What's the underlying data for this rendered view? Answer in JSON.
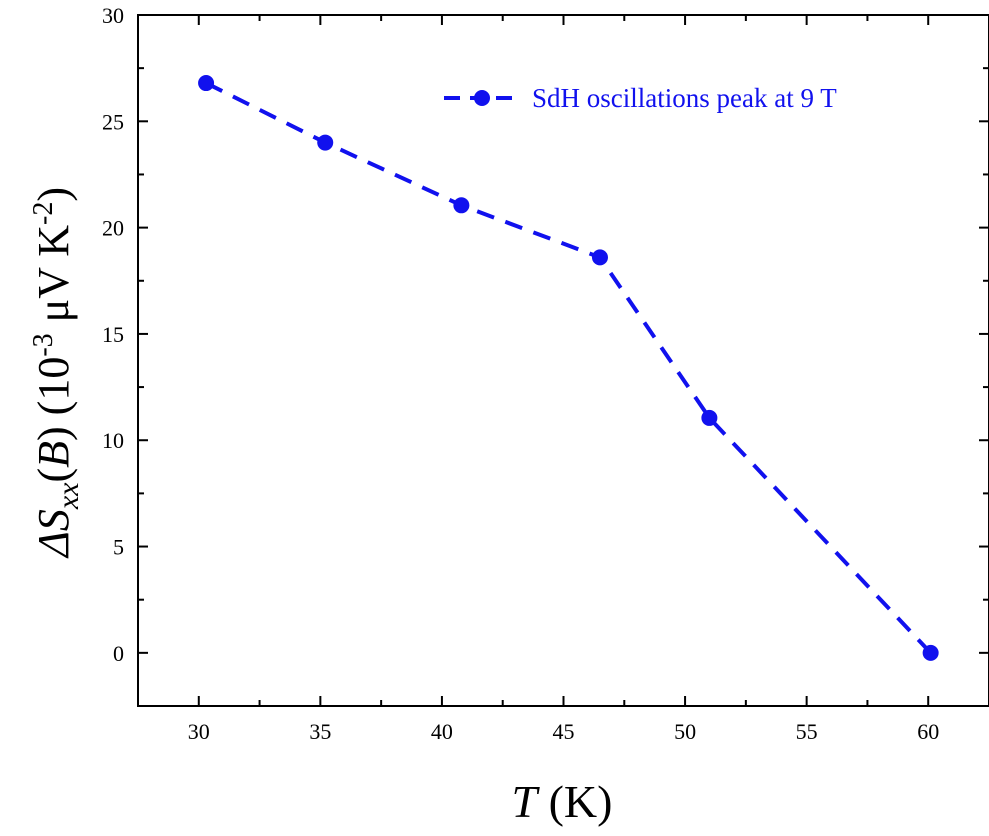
{
  "chart_data": {
    "type": "line",
    "x": [
      30.3,
      35.2,
      40.8,
      46.5,
      51.0,
      60.1
    ],
    "series": [
      {
        "name": "SdH oscillations peak at 9 T",
        "values": [
          26.8,
          24.0,
          21.05,
          18.6,
          11.05,
          0.0
        ],
        "color": "#1111ee",
        "line_style": "dashed",
        "marker": "circle"
      }
    ],
    "xlabel": {
      "italic": "T",
      "rest": " (K)"
    },
    "ylabel": {
      "delta": "ΔS",
      "sub": "xx",
      "paren_open": "(",
      "b": "B",
      "paren_close": ") (10",
      "exp1": "-3",
      "mid": " μV K",
      "exp2": "-2",
      "end": ")"
    },
    "xlim": [
      27.5,
      62.5
    ],
    "ylim": [
      -2.5,
      30
    ],
    "xticks": [
      30,
      35,
      40,
      45,
      50,
      55,
      60
    ],
    "yticks": [
      0,
      5,
      10,
      15,
      20,
      25,
      30
    ],
    "grid": false,
    "legend_position": "top-right"
  }
}
